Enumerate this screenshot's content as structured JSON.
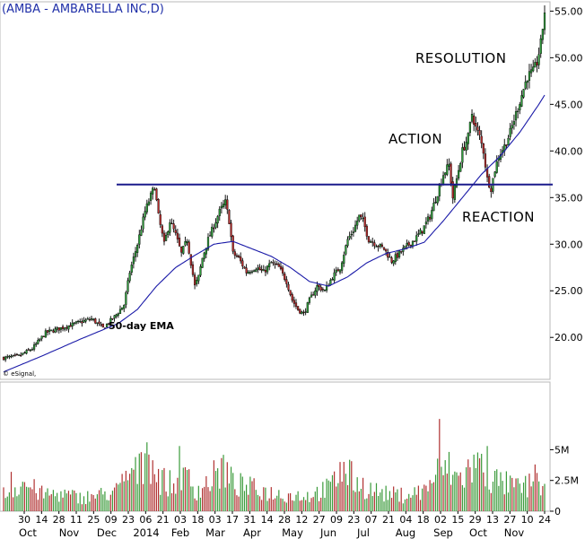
{
  "chart_data": {
    "type": "candlestick",
    "title": "(AMBA - AMBARELLA INC,D)",
    "credit": "© eSignal,",
    "price_axis": {
      "ylim": [
        15.5,
        56
      ],
      "ticks": [
        "55.00",
        "50.00",
        "45.00",
        "40.00",
        "35.00",
        "30.00",
        "25.00",
        "20.00"
      ],
      "tick_values": [
        55,
        50,
        45,
        40,
        35,
        30,
        25,
        20
      ]
    },
    "volume_axis": {
      "ylim": [
        0,
        10.5
      ],
      "ticks": [
        "5M",
        "2.5M",
        "0"
      ],
      "tick_values": [
        5,
        2.5,
        0
      ]
    },
    "date_labels": [
      "30",
      "14",
      "28",
      "11",
      "25",
      "09",
      "23",
      "06",
      "21",
      "03",
      "18",
      "03",
      "17",
      "31",
      "14",
      "28",
      "12",
      "27",
      "09",
      "23",
      "07",
      "21",
      "04",
      "18",
      "02",
      "15",
      "29",
      "13",
      "27",
      "10",
      "24"
    ],
    "month_labels": [
      "Oct",
      "Nov",
      "Dec",
      "2014",
      "Feb",
      "Mar",
      "Apr",
      "May",
      "Jun",
      "Jul",
      "Aug",
      "Sep",
      "Oct",
      "Nov"
    ],
    "resistance_level": 36.4,
    "ema_label": "50-day EMA",
    "annotations": [
      "RESOLUTION",
      "ACTION",
      "REACTION"
    ],
    "colors": {
      "up": "#2e9b3a",
      "down": "#b52a2a",
      "ema": "#1a1aa8",
      "resistance": "#1a1a8c",
      "title": "#1f2fa8"
    },
    "close_path": [
      [
        0,
        17.8
      ],
      [
        8,
        18.0
      ],
      [
        15,
        18.8
      ],
      [
        22,
        20.5
      ],
      [
        30,
        21.0
      ],
      [
        38,
        21.5
      ],
      [
        46,
        22.0
      ],
      [
        52,
        21.0
      ],
      [
        58,
        22.2
      ],
      [
        63,
        23.5
      ],
      [
        66,
        27.0
      ],
      [
        70,
        30.0
      ],
      [
        74,
        33.5
      ],
      [
        77,
        35.2
      ],
      [
        79,
        36.2
      ],
      [
        81,
        33.0
      ],
      [
        84,
        30.0
      ],
      [
        87,
        32.5
      ],
      [
        90,
        31.0
      ],
      [
        93,
        29.0
      ],
      [
        96,
        30.5
      ],
      [
        98,
        28.0
      ],
      [
        100,
        25.5
      ],
      [
        102,
        26.5
      ],
      [
        104,
        28.5
      ],
      [
        107,
        30.5
      ],
      [
        110,
        32.0
      ],
      [
        113,
        33.5
      ],
      [
        116,
        34.5
      ],
      [
        118,
        32.5
      ],
      [
        120,
        29.0
      ],
      [
        123,
        28.5
      ],
      [
        127,
        27.0
      ],
      [
        132,
        27.5
      ],
      [
        136,
        27.0
      ],
      [
        140,
        28.0
      ],
      [
        144,
        27.5
      ],
      [
        148,
        26.0
      ],
      [
        151,
        24.0
      ],
      [
        154,
        23.0
      ],
      [
        157,
        22.5
      ],
      [
        160,
        24.0
      ],
      [
        164,
        25.5
      ],
      [
        168,
        25.0
      ],
      [
        172,
        26.5
      ],
      [
        176,
        27.5
      ],
      [
        180,
        30.5
      ],
      [
        183,
        31.5
      ],
      [
        186,
        33.0
      ],
      [
        188,
        32.5
      ],
      [
        191,
        30.5
      ],
      [
        195,
        30.0
      ],
      [
        199,
        29.5
      ],
      [
        203,
        28.2
      ],
      [
        207,
        29.0
      ],
      [
        211,
        29.8
      ],
      [
        215,
        30.5
      ],
      [
        219,
        31.5
      ],
      [
        223,
        33.0
      ],
      [
        227,
        35.5
      ],
      [
        230,
        37.5
      ],
      [
        233,
        38.5
      ],
      [
        235,
        35.0
      ],
      [
        237,
        37.0
      ],
      [
        240,
        40.0
      ],
      [
        243,
        41.5
      ],
      [
        245,
        44.0
      ],
      [
        247,
        42.5
      ],
      [
        249,
        41.5
      ],
      [
        251,
        40.0
      ],
      [
        253,
        37.0
      ],
      [
        255,
        36.0
      ],
      [
        257,
        38.0
      ],
      [
        259,
        39.5
      ],
      [
        262,
        40.5
      ],
      [
        265,
        42.0
      ],
      [
        268,
        44.0
      ],
      [
        271,
        46.0
      ],
      [
        274,
        48.0
      ],
      [
        277,
        48.5
      ],
      [
        279,
        49.5
      ],
      [
        281,
        51.5
      ],
      [
        283,
        55.0
      ]
    ],
    "ema_path": [
      [
        0,
        16.3
      ],
      [
        20,
        18.0
      ],
      [
        40,
        19.8
      ],
      [
        60,
        21.5
      ],
      [
        70,
        23.0
      ],
      [
        80,
        25.5
      ],
      [
        90,
        27.5
      ],
      [
        100,
        28.8
      ],
      [
        110,
        30.0
      ],
      [
        120,
        30.3
      ],
      [
        130,
        29.5
      ],
      [
        140,
        28.7
      ],
      [
        150,
        27.5
      ],
      [
        160,
        26.0
      ],
      [
        170,
        25.5
      ],
      [
        180,
        26.5
      ],
      [
        190,
        28.0
      ],
      [
        200,
        29.0
      ],
      [
        210,
        29.5
      ],
      [
        220,
        30.2
      ],
      [
        230,
        32.5
      ],
      [
        240,
        35.0
      ],
      [
        250,
        37.5
      ],
      [
        260,
        39.5
      ],
      [
        270,
        42.0
      ],
      [
        280,
        45.0
      ],
      [
        283,
        46.0
      ]
    ],
    "volume_path": [
      [
        0,
        1.5
      ],
      [
        10,
        2.5
      ],
      [
        20,
        1.5
      ],
      [
        30,
        1.5
      ],
      [
        40,
        1.2
      ],
      [
        50,
        1.4
      ],
      [
        60,
        1.8
      ],
      [
        65,
        3.2
      ],
      [
        72,
        3.5
      ],
      [
        76,
        5.0
      ],
      [
        80,
        3.2
      ],
      [
        85,
        2.5
      ],
      [
        90,
        2.2
      ],
      [
        97,
        3.0
      ],
      [
        100,
        1.8
      ],
      [
        105,
        2.2
      ],
      [
        110,
        3.0
      ],
      [
        115,
        3.8
      ],
      [
        120,
        2.4
      ],
      [
        130,
        2.0
      ],
      [
        140,
        1.6
      ],
      [
        150,
        1.4
      ],
      [
        160,
        1.4
      ],
      [
        170,
        2.0
      ],
      [
        178,
        3.5
      ],
      [
        183,
        2.8
      ],
      [
        190,
        2.0
      ],
      [
        200,
        1.5
      ],
      [
        210,
        1.4
      ],
      [
        220,
        1.8
      ],
      [
        226,
        3.2
      ],
      [
        232,
        3.8
      ],
      [
        238,
        2.8
      ],
      [
        245,
        3.8
      ],
      [
        250,
        3.8
      ],
      [
        255,
        2.8
      ],
      [
        260,
        2.5
      ],
      [
        270,
        2.0
      ],
      [
        280,
        2.5
      ],
      [
        283,
        2.0
      ]
    ],
    "volume_spikes": [
      [
        4,
        3.2
      ],
      [
        72,
        4.8
      ],
      [
        75,
        5.6
      ],
      [
        92,
        5.3
      ],
      [
        176,
        4.0
      ],
      [
        228,
        7.5
      ],
      [
        246,
        4.6
      ],
      [
        249,
        4.3
      ],
      [
        253,
        5.3
      ],
      [
        278,
        3.8
      ]
    ]
  }
}
